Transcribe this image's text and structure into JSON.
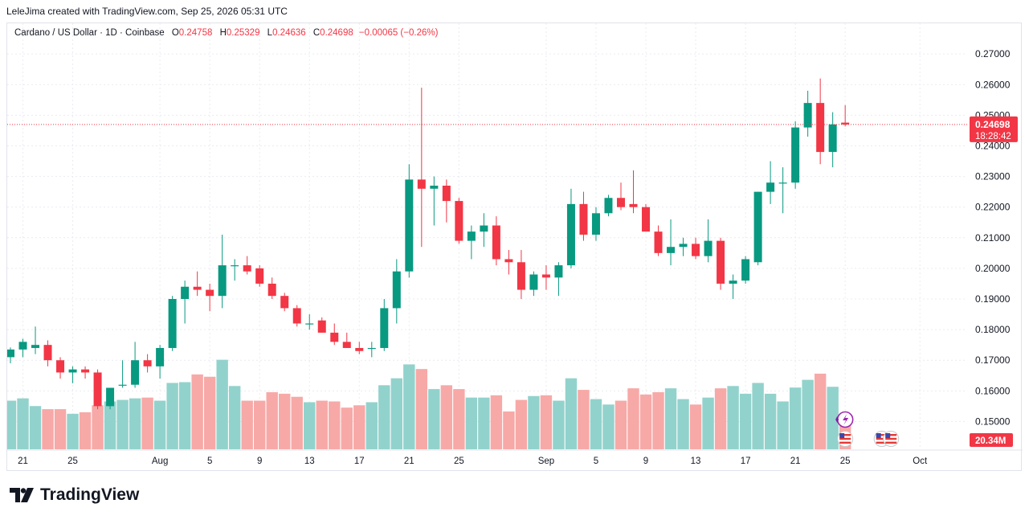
{
  "header": {
    "created_by": "LeleJima created with TradingView.com, Sep 25, 2026 05:31 UTC"
  },
  "legend": {
    "symbol": "Cardano / US Dollar · 1D · Coinbase",
    "o_label": "O",
    "o_value": "0.24758",
    "h_label": "H",
    "h_value": "0.25329",
    "l_label": "L",
    "l_value": "0.24636",
    "c_label": "C",
    "c_value": "0.24698",
    "change": "−0.00065 (−0.26%)"
  },
  "price_tag": {
    "price": "0.24698",
    "countdown": "18:28:42"
  },
  "volume_tag": "20.34M",
  "brand": "TradingView",
  "colors": {
    "up": "#089981",
    "down": "#f23645",
    "up_vol": "#92d2cc",
    "down_vol": "#f7a9a7",
    "grid": "#e9ecf2"
  },
  "icons": [
    "lightning-event-icon",
    "us-flag-event-icon"
  ],
  "chart_data": {
    "type": "candlestick",
    "y_ticks": [
      "0.27000",
      "0.26000",
      "0.25000",
      "0.24000",
      "0.23000",
      "0.22000",
      "0.21000",
      "0.20000",
      "0.19000",
      "0.18000",
      "0.17000",
      "0.16000",
      "0.15000"
    ],
    "ylim": [
      0.1488,
      0.2745
    ],
    "x_tick_labels": [
      "21",
      "25",
      "Aug",
      "5",
      "9",
      "13",
      "17",
      "21",
      "25",
      "Sep",
      "5",
      "9",
      "13",
      "17",
      "21",
      "25",
      "Oct"
    ],
    "x_tick_index": [
      1,
      5,
      12,
      16,
      20,
      24,
      28,
      32,
      36,
      43,
      47,
      51,
      55,
      59,
      63,
      67,
      73
    ],
    "grid": true,
    "last_price": 0.24698,
    "candles": [
      [
        0.171,
        0.1742,
        0.169,
        0.1735
      ],
      [
        0.1735,
        0.177,
        0.171,
        0.176
      ],
      [
        0.174,
        0.181,
        0.172,
        0.175
      ],
      [
        0.175,
        0.1765,
        0.168,
        0.17
      ],
      [
        0.17,
        0.171,
        0.164,
        0.166
      ],
      [
        0.166,
        0.168,
        0.1625,
        0.167
      ],
      [
        0.167,
        0.168,
        0.164,
        0.166
      ],
      [
        0.166,
        0.167,
        0.154,
        0.155
      ],
      [
        0.155,
        0.161,
        0.154,
        0.161
      ],
      [
        0.162,
        0.17,
        0.161,
        0.162
      ],
      [
        0.162,
        0.176,
        0.161,
        0.17
      ],
      [
        0.17,
        0.172,
        0.166,
        0.168
      ],
      [
        0.168,
        0.175,
        0.164,
        0.174
      ],
      [
        0.174,
        0.191,
        0.173,
        0.19
      ],
      [
        0.19,
        0.196,
        0.182,
        0.194
      ],
      [
        0.194,
        0.199,
        0.191,
        0.193
      ],
      [
        0.193,
        0.195,
        0.186,
        0.191
      ],
      [
        0.191,
        0.211,
        0.187,
        0.201
      ],
      [
        0.201,
        0.203,
        0.196,
        0.201
      ],
      [
        0.201,
        0.204,
        0.198,
        0.199
      ],
      [
        0.2,
        0.201,
        0.194,
        0.195
      ],
      [
        0.195,
        0.197,
        0.19,
        0.191
      ],
      [
        0.191,
        0.192,
        0.186,
        0.187
      ],
      [
        0.187,
        0.188,
        0.181,
        0.182
      ],
      [
        0.182,
        0.185,
        0.18,
        0.182
      ],
      [
        0.183,
        0.184,
        0.179,
        0.179
      ],
      [
        0.179,
        0.182,
        0.175,
        0.176
      ],
      [
        0.176,
        0.179,
        0.174,
        0.174
      ],
      [
        0.174,
        0.176,
        0.172,
        0.173
      ],
      [
        0.174,
        0.176,
        0.171,
        0.174
      ],
      [
        0.174,
        0.19,
        0.173,
        0.187
      ],
      [
        0.187,
        0.203,
        0.182,
        0.199
      ],
      [
        0.199,
        0.234,
        0.197,
        0.229
      ],
      [
        0.229,
        0.259,
        0.207,
        0.226
      ],
      [
        0.226,
        0.23,
        0.214,
        0.227
      ],
      [
        0.227,
        0.229,
        0.215,
        0.222
      ],
      [
        0.222,
        0.223,
        0.208,
        0.209
      ],
      [
        0.209,
        0.214,
        0.203,
        0.212
      ],
      [
        0.212,
        0.218,
        0.207,
        0.214
      ],
      [
        0.214,
        0.217,
        0.201,
        0.203
      ],
      [
        0.203,
        0.206,
        0.198,
        0.202
      ],
      [
        0.202,
        0.206,
        0.19,
        0.193
      ],
      [
        0.193,
        0.199,
        0.191,
        0.198
      ],
      [
        0.198,
        0.201,
        0.193,
        0.197
      ],
      [
        0.197,
        0.202,
        0.191,
        0.201
      ],
      [
        0.201,
        0.226,
        0.2,
        0.221
      ],
      [
        0.221,
        0.225,
        0.209,
        0.211
      ],
      [
        0.211,
        0.22,
        0.209,
        0.218
      ],
      [
        0.218,
        0.224,
        0.217,
        0.223
      ],
      [
        0.223,
        0.228,
        0.219,
        0.22
      ],
      [
        0.221,
        0.232,
        0.218,
        0.22
      ],
      [
        0.22,
        0.221,
        0.212,
        0.212
      ],
      [
        0.212,
        0.214,
        0.204,
        0.205
      ],
      [
        0.205,
        0.216,
        0.201,
        0.207
      ],
      [
        0.207,
        0.21,
        0.204,
        0.208
      ],
      [
        0.208,
        0.21,
        0.203,
        0.204
      ],
      [
        0.204,
        0.216,
        0.202,
        0.209
      ],
      [
        0.209,
        0.21,
        0.193,
        0.195
      ],
      [
        0.195,
        0.198,
        0.19,
        0.196
      ],
      [
        0.196,
        0.204,
        0.195,
        0.203
      ],
      [
        0.202,
        0.225,
        0.201,
        0.225
      ],
      [
        0.225,
        0.235,
        0.221,
        0.228
      ],
      [
        0.228,
        0.233,
        0.218,
        0.228
      ],
      [
        0.228,
        0.248,
        0.226,
        0.246
      ],
      [
        0.246,
        0.258,
        0.243,
        0.254
      ],
      [
        0.254,
        0.262,
        0.234,
        0.238
      ],
      [
        0.238,
        0.251,
        0.233,
        0.247
      ],
      [
        0.24758,
        0.25329,
        0.24636,
        0.24698
      ]
    ],
    "volume_unit": "M",
    "volumes": [
      31.5,
      33,
      28,
      26,
      26,
      23,
      24,
      28.5,
      31,
      32,
      33,
      33.5,
      31.5,
      43,
      43.5,
      48.5,
      47,
      58,
      41,
      31.5,
      31.5,
      37,
      36,
      34,
      30.5,
      31.5,
      31,
      27,
      28.5,
      30.5,
      41.5,
      46,
      55,
      52,
      39,
      41.5,
      39,
      33.5,
      33.5,
      35,
      24.5,
      32,
      34.5,
      35,
      31.5,
      46,
      38.5,
      32.5,
      29,
      31.5,
      39.5,
      35.5,
      37,
      39.5,
      32.5,
      29,
      33.5,
      39.5,
      41,
      36,
      43,
      36,
      31,
      40,
      45,
      49,
      40.5,
      20.34
    ]
  }
}
